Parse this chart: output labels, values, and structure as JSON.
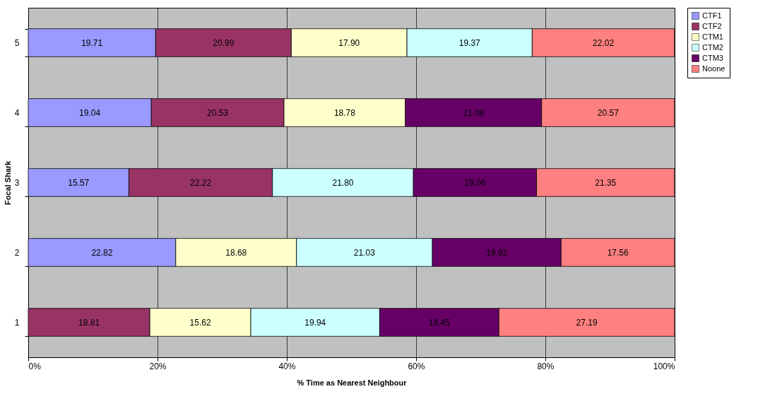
{
  "chart_data": {
    "type": "bar",
    "orientation": "horizontal",
    "stacked": true,
    "xlabel": "% Time as Nearest Neighbour",
    "ylabel": "Focal Shark",
    "categories": [
      "5",
      "4",
      "3",
      "2",
      "1"
    ],
    "series": [
      {
        "name": "CTF1",
        "color": "#9999ff",
        "values": [
          19.71,
          19.04,
          15.57,
          22.82,
          null
        ],
        "value_labels": [
          "19.71",
          "19.04",
          "15.57",
          "22.82",
          null
        ]
      },
      {
        "name": "CTF2",
        "color": "#993366",
        "values": [
          20.99,
          20.53,
          22.22,
          null,
          18.81
        ],
        "value_labels": [
          "20.99",
          "20.53",
          "22.22",
          null,
          "18.81"
        ]
      },
      {
        "name": "CTM1",
        "color": "#ffffcc",
        "values": [
          17.9,
          18.78,
          null,
          18.68,
          15.62
        ],
        "value_labels": [
          "17.90",
          "18.78",
          null,
          "18.68",
          "15.62"
        ]
      },
      {
        "name": "CTM2",
        "color": "#ccffff",
        "values": [
          19.37,
          null,
          21.8,
          21.03,
          19.94
        ],
        "value_labels": [
          "19.37",
          null,
          "21.80",
          "21.03",
          "19.94"
        ]
      },
      {
        "name": "CTM3",
        "color": "#660066",
        "values": [
          null,
          21.08,
          19.06,
          19.92,
          18.45
        ],
        "value_labels": [
          null,
          "21.08",
          "19.06",
          "19.92",
          "18.45"
        ]
      },
      {
        "name": "Noone",
        "color": "#ff8080",
        "values": [
          22.02,
          20.57,
          21.35,
          17.56,
          27.19
        ],
        "value_labels": [
          "22.02",
          "20.57",
          "21.35",
          "17.56",
          "27.19"
        ]
      }
    ],
    "xlim": [
      0,
      100.01
    ],
    "xticks": [
      {
        "value": 0,
        "label": "0%"
      },
      {
        "value": 20,
        "label": "20%"
      },
      {
        "value": 40,
        "label": "40%"
      },
      {
        "value": 60,
        "label": "60%"
      },
      {
        "value": 80,
        "label": "80%"
      },
      {
        "value": 100,
        "label": "100%"
      }
    ],
    "grid": "x",
    "legend": "right"
  }
}
